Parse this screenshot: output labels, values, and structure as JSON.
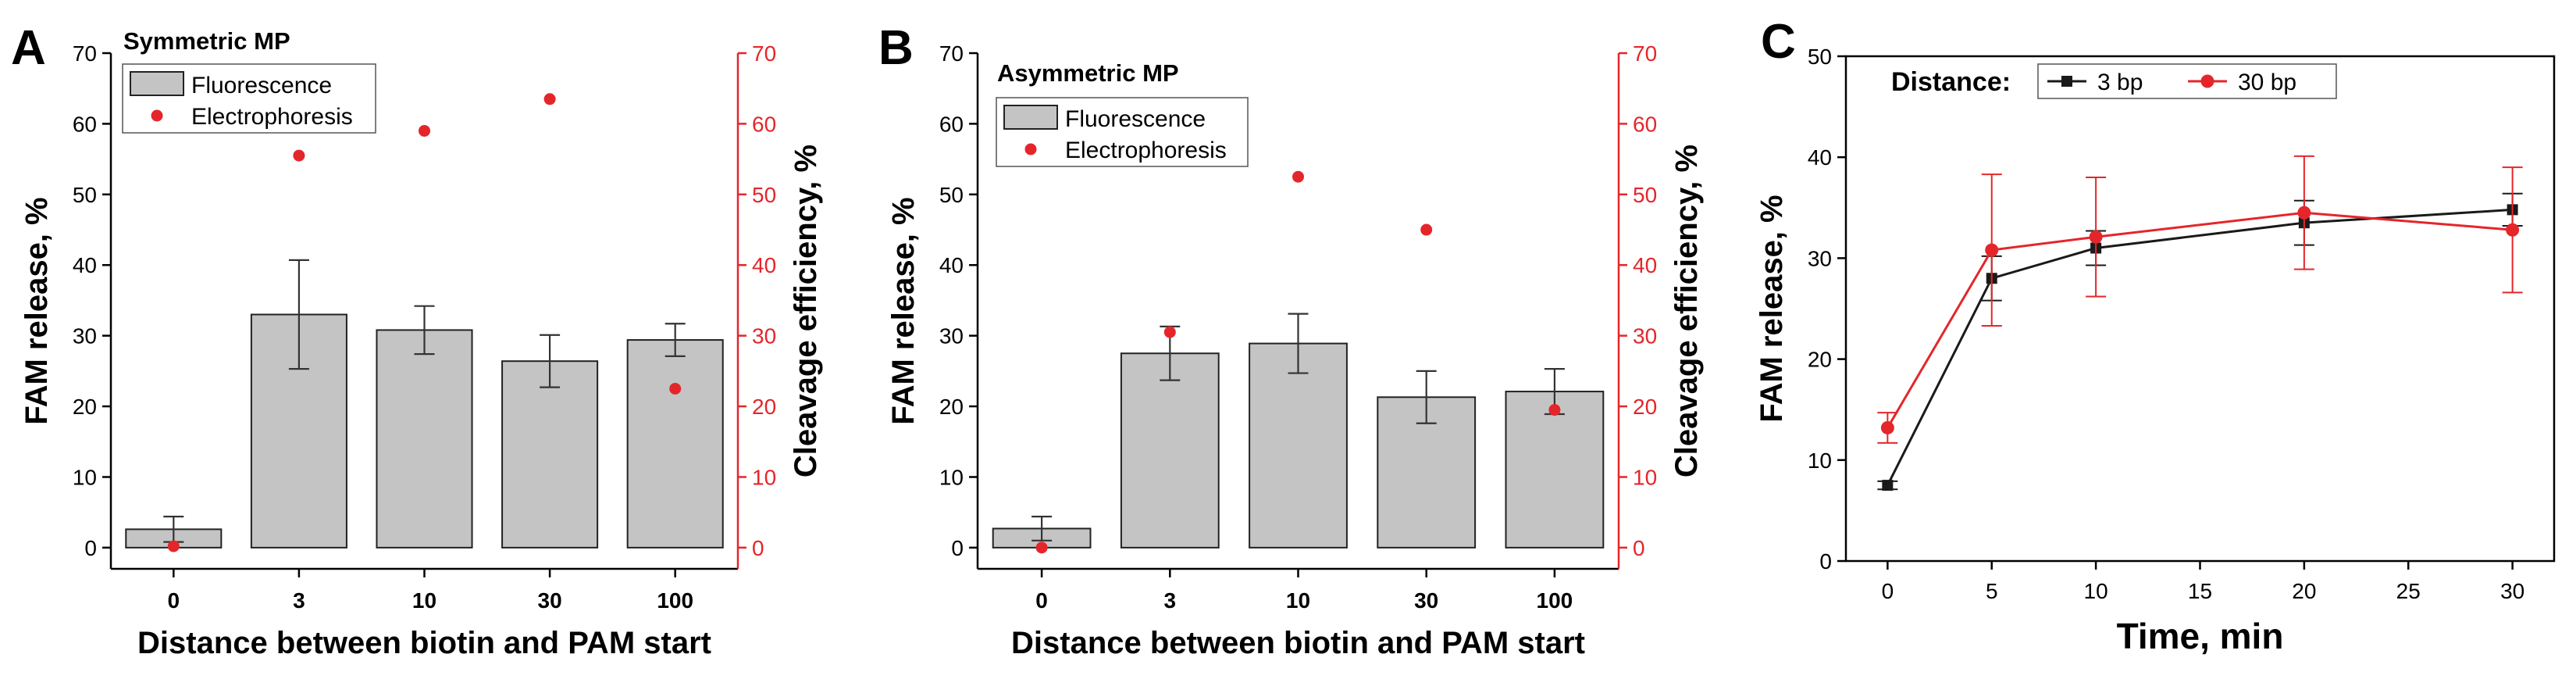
{
  "colors": {
    "bar_fill": "#c4c4c4",
    "bar_stroke": "#222222",
    "electrophoresis": "#e4262b",
    "line_3bp": "#1a1a1a",
    "line_30bp": "#e4262b"
  },
  "chart_data": [
    {
      "panel": "A",
      "type": "bar",
      "title": "Symmetric MP",
      "xlabel": "Distance between biotin and PAM start",
      "ylabel": "FAM release, %",
      "ylabel_right": "Cleavage efficiency, %",
      "ylim": [
        -3,
        70
      ],
      "ylim_right": [
        -3,
        70
      ],
      "yticks": [
        0,
        10,
        20,
        30,
        40,
        50,
        60,
        70
      ],
      "categories": [
        "0",
        "3",
        "10",
        "30",
        "100"
      ],
      "legend": [
        "Fluorescence",
        "Electrophoresis"
      ],
      "series": [
        {
          "name": "Fluorescence",
          "kind": "bar",
          "axis": "left",
          "values": [
            2.6,
            33.0,
            30.8,
            26.4,
            29.4
          ],
          "errors": [
            1.8,
            7.7,
            3.4,
            3.7,
            2.3
          ]
        },
        {
          "name": "Electrophoresis",
          "kind": "scatter",
          "axis": "right",
          "values": [
            0.2,
            55.5,
            59.0,
            63.5,
            22.5
          ]
        }
      ]
    },
    {
      "panel": "B",
      "type": "bar",
      "title": "Asymmetric MP",
      "xlabel": "Distance between biotin and PAM start",
      "ylabel": "FAM release, %",
      "ylabel_right": "Cleavage efficiency, %",
      "ylim": [
        -3,
        70
      ],
      "ylim_right": [
        -3,
        70
      ],
      "yticks": [
        0,
        10,
        20,
        30,
        40,
        50,
        60,
        70
      ],
      "categories": [
        "0",
        "3",
        "10",
        "30",
        "100"
      ],
      "legend": [
        "Fluorescence",
        "Electrophoresis"
      ],
      "series": [
        {
          "name": "Fluorescence",
          "kind": "bar",
          "axis": "left",
          "values": [
            2.7,
            27.5,
            28.9,
            21.3,
            22.1
          ],
          "errors": [
            1.7,
            3.8,
            4.2,
            3.7,
            3.2
          ]
        },
        {
          "name": "Electrophoresis",
          "kind": "scatter",
          "axis": "right",
          "values": [
            0.0,
            30.5,
            52.5,
            45.0,
            19.5
          ]
        }
      ]
    },
    {
      "panel": "C",
      "type": "line",
      "xlabel": "Time, min",
      "ylabel": "FAM release, %",
      "xlim": [
        -2,
        32
      ],
      "ylim": [
        0,
        50
      ],
      "xticks": [
        0,
        5,
        10,
        15,
        20,
        25,
        30
      ],
      "yticks": [
        0,
        10,
        20,
        30,
        40,
        50
      ],
      "legend_title": "Distance:",
      "x": [
        0,
        5,
        10,
        20,
        30
      ],
      "series": [
        {
          "name": "3 bp",
          "marker": "square",
          "values": [
            7.5,
            28.0,
            31.0,
            33.5,
            34.8
          ],
          "errors": [
            0.4,
            2.2,
            1.7,
            2.2,
            1.6
          ]
        },
        {
          "name": "30 bp",
          "marker": "circle",
          "values": [
            13.2,
            30.8,
            32.1,
            34.5,
            32.8
          ],
          "errors": [
            1.5,
            7.5,
            5.9,
            5.6,
            6.2
          ]
        }
      ]
    }
  ]
}
